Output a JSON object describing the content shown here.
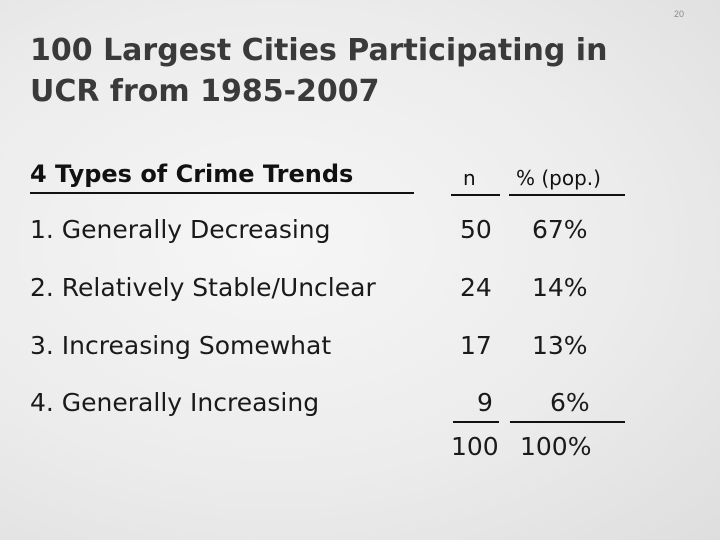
{
  "page_number": "20",
  "title_lines": [
    "100 Largest Cities Participating in",
    "UCR from 1985-2007"
  ],
  "table": {
    "header": {
      "label": "4 Types of Crime Trends",
      "n": "n",
      "pct": "% (pop.)"
    },
    "rows": [
      {
        "label": "1. Generally Decreasing",
        "n": "50",
        "pct": "67%"
      },
      {
        "label": "2. Relatively Stable/Unclear",
        "n": "24",
        "pct": "14%"
      },
      {
        "label": "3. Increasing Somewhat",
        "n": "17",
        "pct": "13%"
      },
      {
        "label": "4. Generally Increasing",
        "n": "9",
        "pct": "6%"
      }
    ],
    "totals": {
      "n": "100",
      "pct": "100%"
    }
  }
}
